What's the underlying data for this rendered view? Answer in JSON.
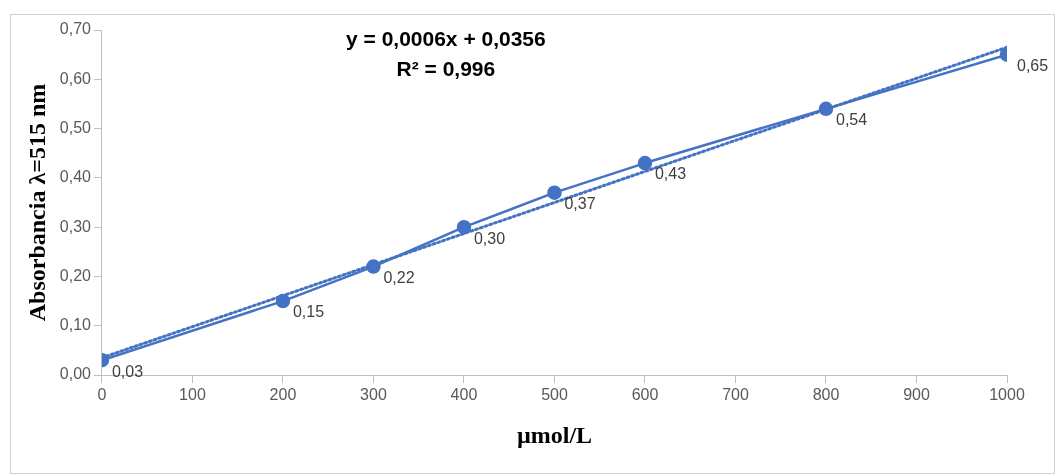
{
  "chart_data": {
    "type": "line",
    "xlabel": "µmol/L",
    "ylabel": "Absorbancia λ=515 nm",
    "annotations": [
      "y = 0,0006x + 0,0356",
      "R² = 0,996"
    ],
    "xlim": [
      0,
      1000
    ],
    "xticks": [
      0,
      100,
      200,
      300,
      400,
      500,
      600,
      700,
      800,
      900,
      1000
    ],
    "ylim": [
      0,
      0.7
    ],
    "yticks": [
      {
        "value": 0,
        "label": "0,00"
      },
      {
        "value": 0.1,
        "label": "0,10"
      },
      {
        "value": 0.2,
        "label": "0,20"
      },
      {
        "value": 0.3,
        "label": "0,30"
      },
      {
        "value": 0.4,
        "label": "0,40"
      },
      {
        "value": 0.5,
        "label": "0,50"
      },
      {
        "value": 0.6,
        "label": "0,60"
      },
      {
        "value": 0.7,
        "label": "0,70"
      }
    ],
    "grid": false,
    "legend": false,
    "marker": "circle",
    "line_style": "solid",
    "series": [
      {
        "type": "line",
        "color": "#4472c4",
        "x": [
          0,
          200,
          300,
          400,
          500,
          600,
          800,
          1000
        ],
        "values": [
          0.03,
          0.15,
          0.22,
          0.3,
          0.37,
          0.43,
          0.54,
          0.65
        ],
        "value_labels": [
          "0,03",
          "0,15",
          "0,22",
          "0,30",
          "0,37",
          "0,43",
          "0,54",
          "0,65"
        ]
      },
      {
        "type": "line",
        "color": "#4472c4",
        "x": [
          0,
          1000
        ],
        "values": [
          0.035,
          0.665
        ],
        "marker": "none",
        "line_style": "dotted"
      }
    ]
  }
}
